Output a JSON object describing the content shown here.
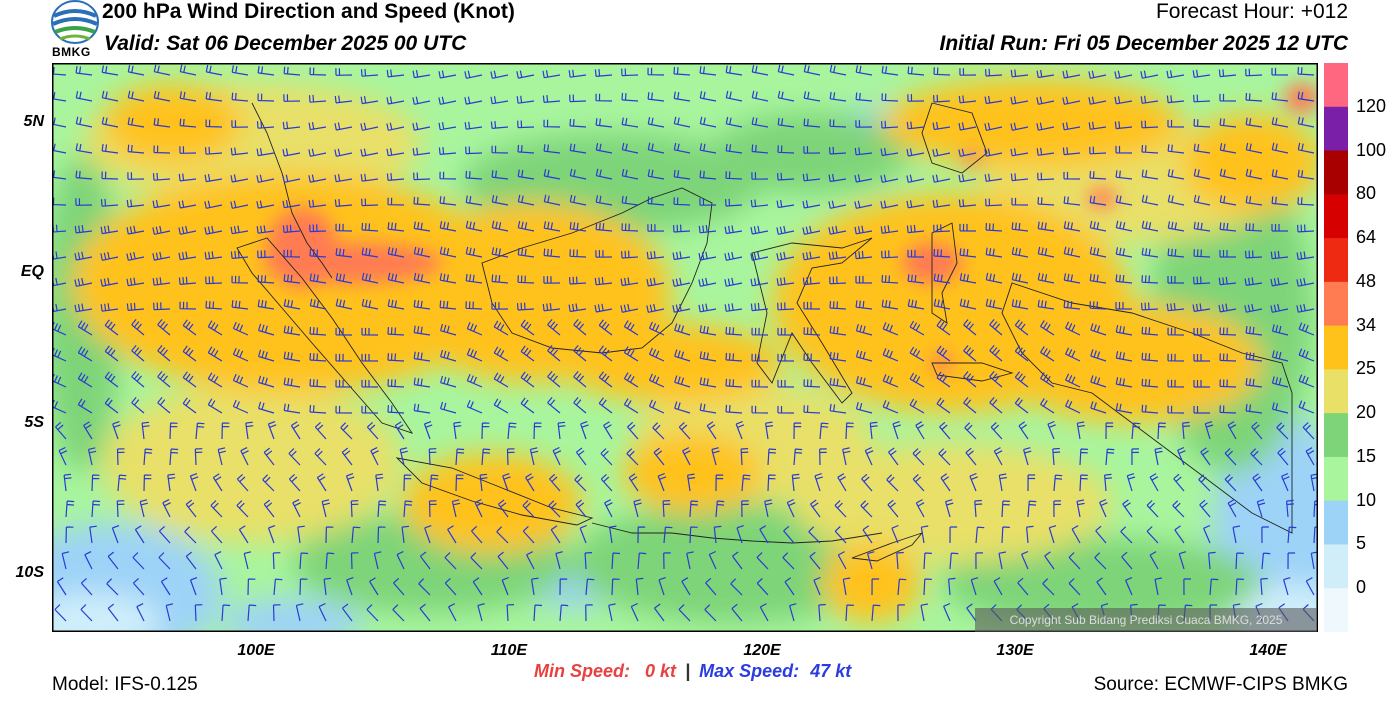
{
  "header": {
    "title": "200 hPa Wind Direction and Speed (Knot)",
    "valid": "Valid: Sat 06 December 2025 00 UTC",
    "forecast_hour": "Forecast Hour: +012",
    "initial_run": "Initial Run: Fri 05 December 2025 12 UTC",
    "logo_text": "BMKG"
  },
  "axes": {
    "lat_labels": [
      "5N",
      "EQ",
      "5S",
      "10S"
    ],
    "lon_labels": [
      "100E",
      "110E",
      "120E",
      "130E",
      "140E"
    ]
  },
  "colorbar": {
    "labels": [
      "120",
      "100",
      "80",
      "64",
      "48",
      "34",
      "25",
      "20",
      "15",
      "10",
      "5",
      "0"
    ],
    "colors": [
      "#ff6680",
      "#7a1fa8",
      "#a80000",
      "#d60000",
      "#ee2a12",
      "#ff7c52",
      "#ffc21a",
      "#e8e067",
      "#7ed478",
      "#a8f59e",
      "#9dd3f7",
      "#cfeefa",
      "#eef8fd"
    ]
  },
  "footer": {
    "model": "Model: IFS-0.125",
    "source": "Source: ECMWF-CIPS BMKG",
    "min_label": "Min Speed:",
    "min_value": "0 kt",
    "separator": "|",
    "max_label": "Max Speed:",
    "max_value": "47 kt",
    "copyright": "Copyright Sub Bidang Prediksi Cuaca BMKG, 2025"
  },
  "colors": {
    "barb": "#2a3ad6",
    "coast": "#222222",
    "frame": "#000000"
  }
}
